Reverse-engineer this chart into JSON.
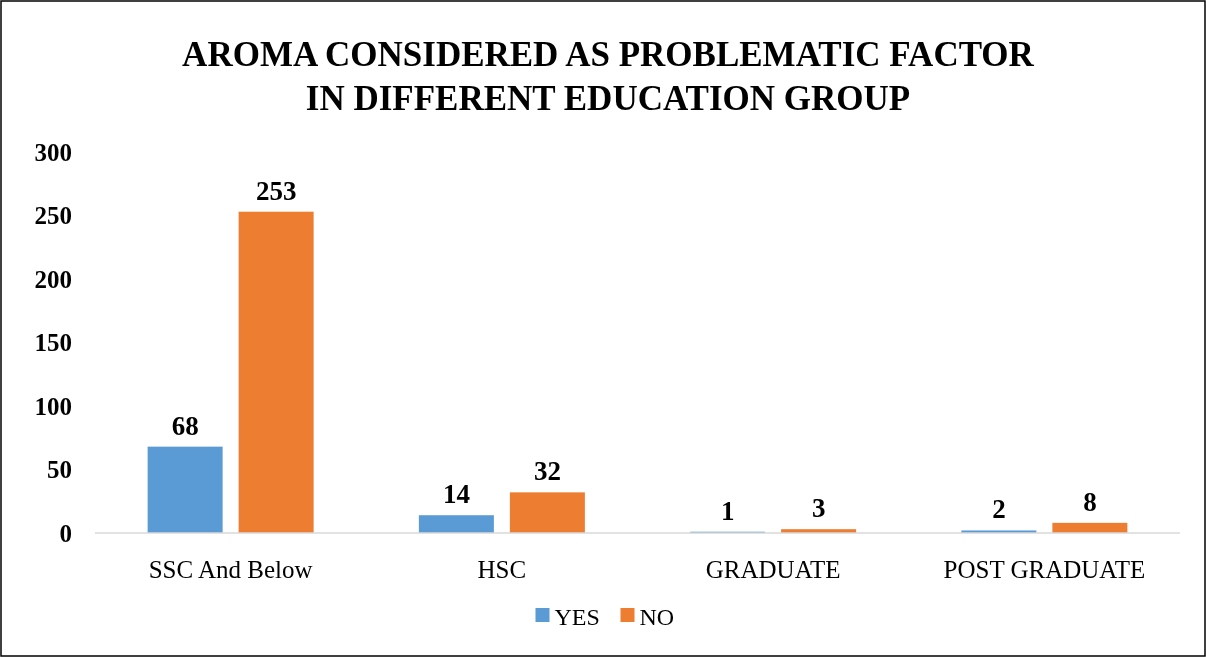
{
  "chart_data": {
    "type": "bar",
    "title": "AROMA CONSIDERED AS PROBLEMATIC FACTOR\nIN DIFFERENT EDUCATION GROUP",
    "categories": [
      "SSC And Below",
      "HSC",
      "GRADUATE",
      "POST GRADUATE"
    ],
    "series": [
      {
        "name": "YES",
        "color": "#5b9bd5",
        "values": [
          68,
          14,
          1,
          2
        ]
      },
      {
        "name": "NO",
        "color": "#ed7d31",
        "values": [
          253,
          32,
          3,
          8
        ]
      }
    ],
    "ylim": [
      0,
      300
    ],
    "yticks": [
      0,
      50,
      100,
      150,
      200,
      250,
      300
    ],
    "data_labels": true,
    "legend": "bottom",
    "grid": false
  }
}
